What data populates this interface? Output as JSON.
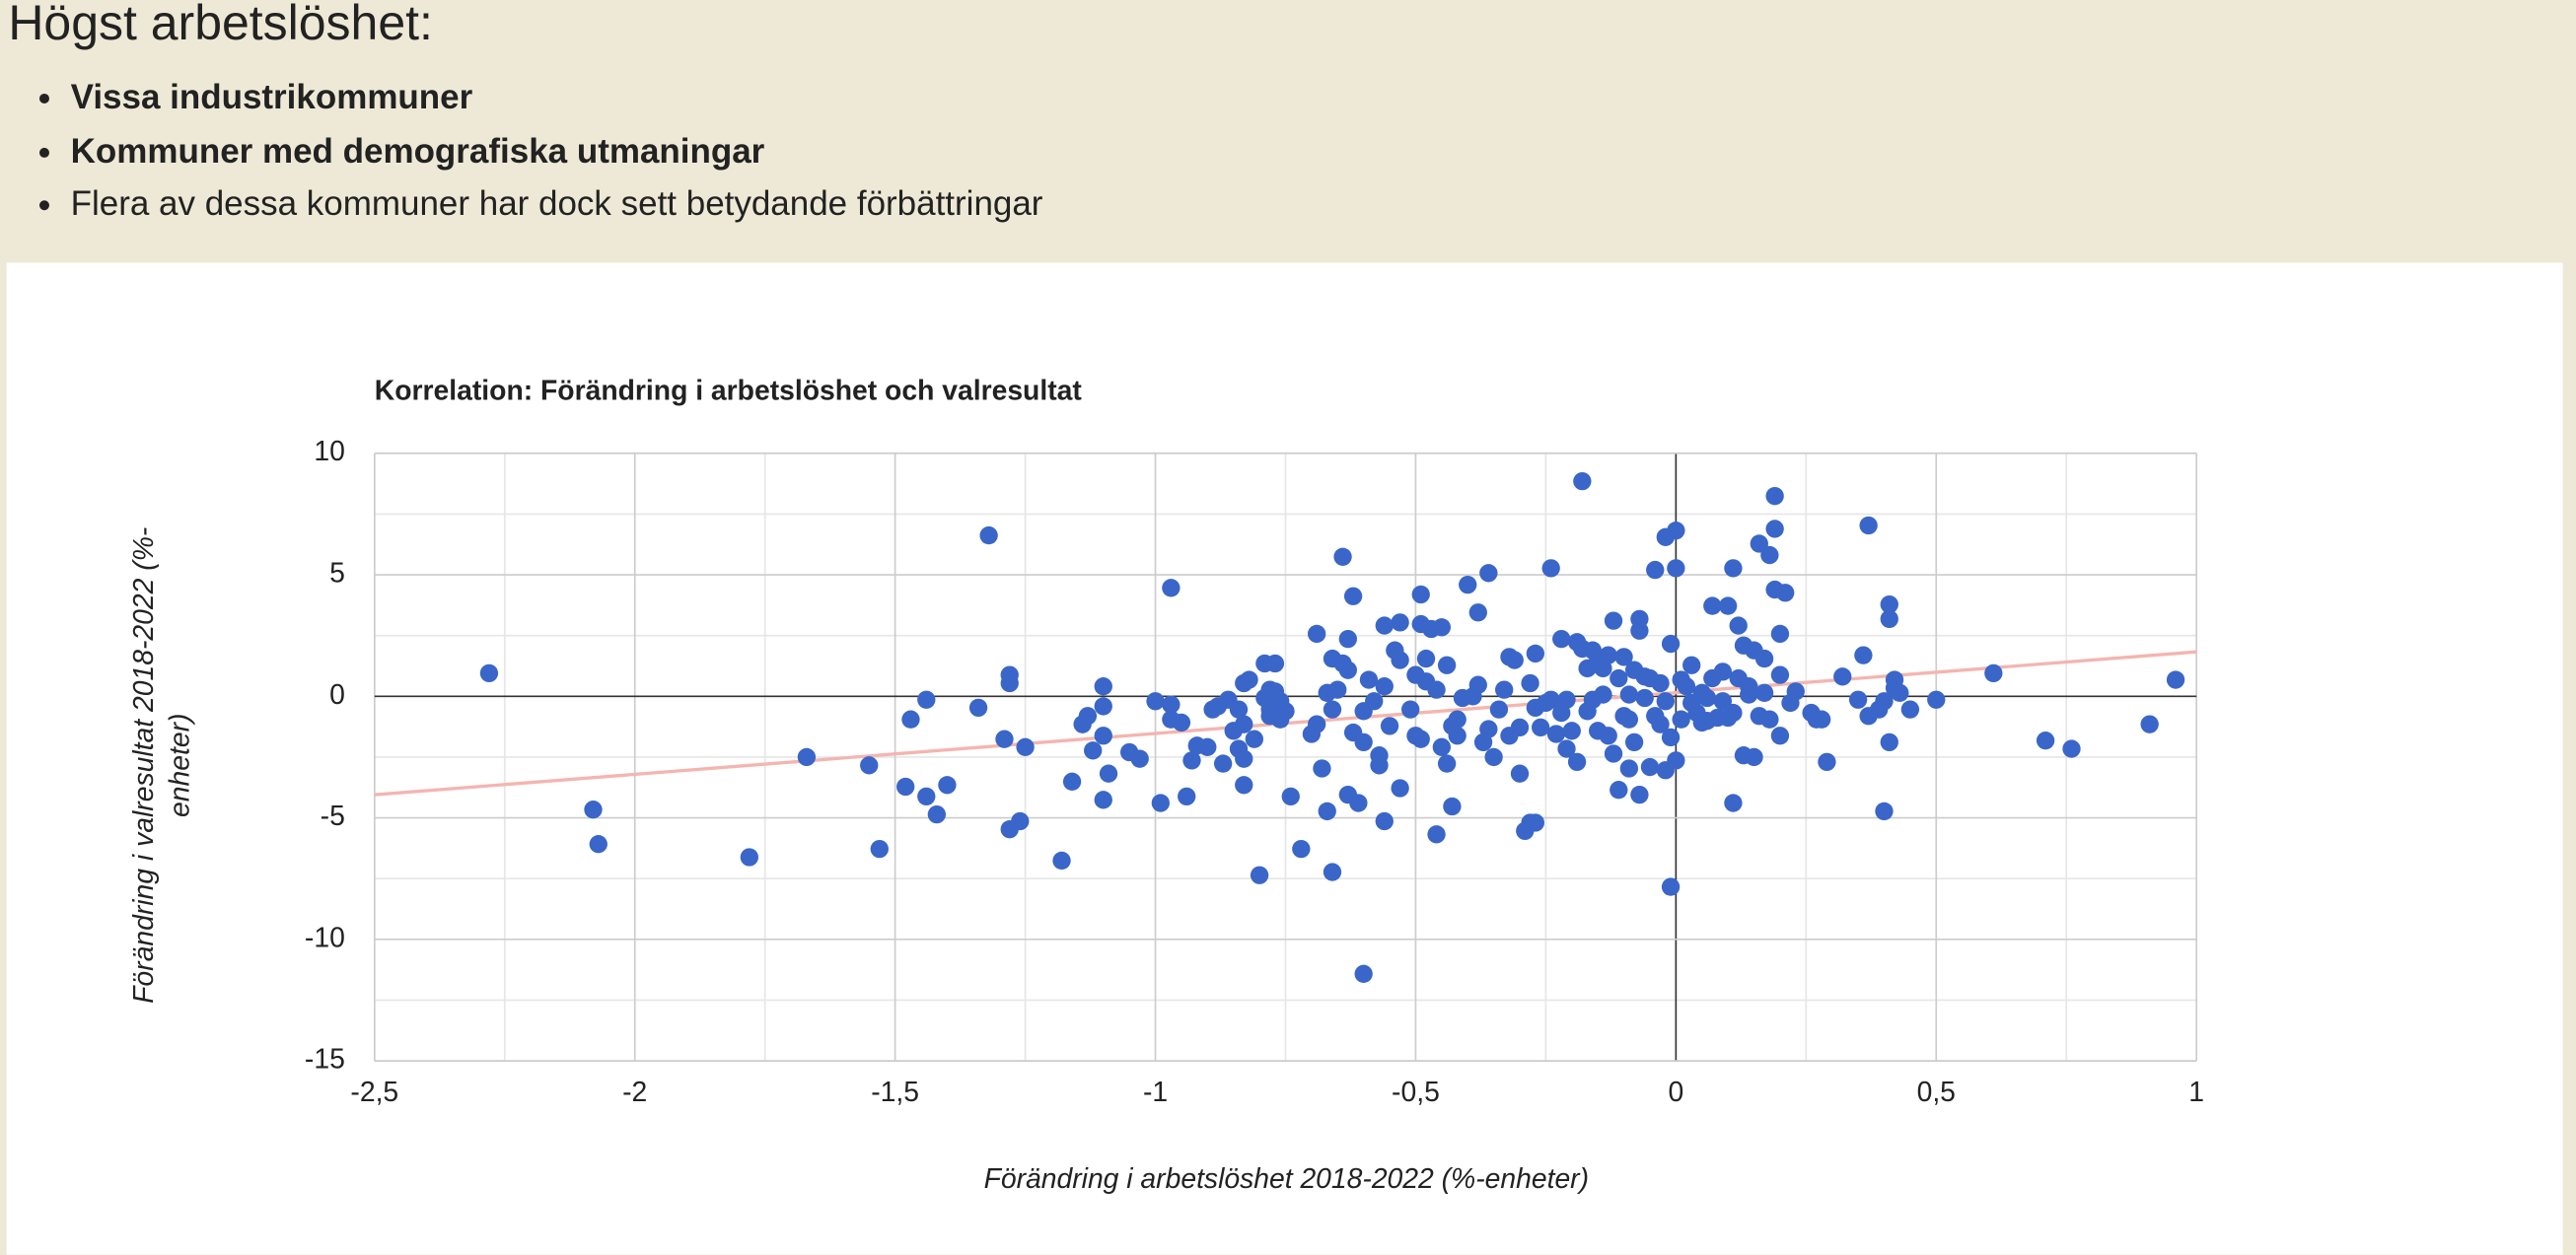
{
  "header": {
    "title": "Högst arbetslöshet:",
    "bullets": [
      {
        "text": "Vissa industrikommuner",
        "bold": true
      },
      {
        "text": "Kommuner med demografiska utmaningar",
        "bold": true
      },
      {
        "text": "Flera av dessa kommuner har dock sett betydande förbättringar",
        "bold": false
      }
    ]
  },
  "chart_data": {
    "type": "scatter",
    "title": "Korrelation: Förändring i arbetslöshet och valresultat",
    "xlabel": "Förändring i arbetslöshet 2018-2022 (%-enheter)",
    "ylabel": "Förändring i valresultat 2018-2022 (%-enheter)",
    "color": "#3a66c9",
    "xlim": [
      -2.5,
      1
    ],
    "ylim": [
      -15,
      10
    ],
    "xticks": [
      {
        "value": -2.5,
        "label": "-2,5"
      },
      -2,
      {
        "value": -1.5,
        "label": "-1,5"
      },
      -1,
      {
        "value": -0.5,
        "label": "-0,5"
      },
      0,
      {
        "value": 0.5,
        "label": "0,5"
      },
      1
    ],
    "yticks": [
      -15,
      -10,
      -5,
      0,
      5,
      10
    ],
    "grid": true,
    "minor_grid": true,
    "trendline": {
      "slope": 1.68,
      "intercept": 0.15,
      "color": "#f4b5b0"
    },
    "x": [
      -2.28,
      -2.08,
      -2.07,
      -1.78,
      -1.67,
      -1.55,
      -1.53,
      -1.48,
      -1.47,
      -1.44,
      -1.44,
      -1.42,
      -1.4,
      -1.34,
      -1.32,
      -1.29,
      -1.28,
      -1.28,
      -1.28,
      -1.26,
      -1.25,
      -1.18,
      -1.16,
      -1.14,
      -1.13,
      -1.12,
      -1.1,
      -1.1,
      -1.1,
      -1.1,
      -1.09,
      -1.05,
      -1.03,
      -1.0,
      -0.99,
      -0.97,
      -0.97,
      -0.97,
      -0.95,
      -0.94,
      -0.93,
      -0.92,
      -0.9,
      -0.89,
      -0.88,
      -0.87,
      -0.86,
      -0.85,
      -0.84,
      -0.84,
      -0.83,
      -0.83,
      -0.83,
      -0.83,
      -0.82,
      -0.81,
      -0.8,
      -0.79,
      -0.79,
      -0.78,
      -0.78,
      -0.78,
      -0.77,
      -0.77,
      -0.76,
      -0.76,
      -0.75,
      -0.74,
      -0.72,
      -0.7,
      -0.69,
      -0.69,
      -0.68,
      -0.67,
      -0.67,
      -0.66,
      -0.66,
      -0.66,
      -0.65,
      -0.64,
      -0.64,
      -0.63,
      -0.63,
      -0.63,
      -0.62,
      -0.62,
      -0.61,
      -0.6,
      -0.6,
      -0.6,
      -0.59,
      -0.58,
      -0.57,
      -0.57,
      -0.56,
      -0.56,
      -0.56,
      -0.55,
      -0.54,
      -0.53,
      -0.53,
      -0.53,
      -0.51,
      -0.5,
      -0.5,
      -0.49,
      -0.49,
      -0.49,
      -0.48,
      -0.48,
      -0.47,
      -0.46,
      -0.46,
      -0.45,
      -0.45,
      -0.44,
      -0.44,
      -0.43,
      -0.43,
      -0.42,
      -0.42,
      -0.41,
      -0.4,
      -0.39,
      -0.38,
      -0.38,
      -0.37,
      -0.36,
      -0.36,
      -0.35,
      -0.34,
      -0.33,
      -0.32,
      -0.32,
      -0.31,
      -0.3,
      -0.3,
      -0.29,
      -0.28,
      -0.28,
      -0.27,
      -0.27,
      -0.27,
      -0.26,
      -0.25,
      -0.24,
      -0.24,
      -0.23,
      -0.22,
      -0.22,
      -0.21,
      -0.21,
      -0.2,
      -0.19,
      -0.19,
      -0.18,
      -0.18,
      -0.17,
      -0.17,
      -0.16,
      -0.16,
      -0.15,
      -0.15,
      -0.14,
      -0.14,
      -0.13,
      -0.13,
      -0.12,
      -0.12,
      -0.11,
      -0.11,
      -0.1,
      -0.1,
      -0.09,
      -0.09,
      -0.09,
      -0.08,
      -0.08,
      -0.07,
      -0.07,
      -0.07,
      -0.06,
      -0.06,
      -0.05,
      -0.05,
      -0.04,
      -0.04,
      -0.03,
      -0.03,
      -0.02,
      -0.02,
      -0.02,
      -0.01,
      -0.01,
      -0.01,
      0.0,
      0.0,
      0.0,
      0.01,
      0.01,
      0.02,
      0.03,
      0.03,
      0.04,
      0.05,
      0.05,
      0.06,
      0.06,
      0.07,
      0.07,
      0.08,
      0.09,
      0.09,
      0.1,
      0.1,
      0.11,
      0.11,
      0.11,
      0.12,
      0.12,
      0.13,
      0.13,
      0.14,
      0.14,
      0.15,
      0.15,
      0.16,
      0.16,
      0.17,
      0.17,
      0.18,
      0.18,
      0.19,
      0.19,
      0.19,
      0.2,
      0.2,
      0.2,
      0.21,
      0.22,
      0.23,
      0.26,
      0.27,
      0.28,
      0.29,
      0.32,
      0.35,
      0.36,
      0.37,
      0.37,
      0.39,
      0.4,
      0.4,
      0.41,
      0.41,
      0.41,
      0.42,
      0.42,
      0.43,
      0.45,
      0.5,
      0.61,
      0.71,
      0.76,
      0.91,
      0.96
    ],
    "y": [
      0.95,
      -4.66,
      -6.08,
      -6.62,
      -2.5,
      -2.84,
      -6.28,
      -3.72,
      -0.95,
      -0.14,
      -4.12,
      -4.86,
      -3.65,
      -0.47,
      6.62,
      -1.76,
      0.88,
      0.54,
      -5.47,
      -5.14,
      -2.09,
      -6.76,
      -3.51,
      -1.15,
      -0.81,
      -2.23,
      0.41,
      -0.41,
      -1.62,
      -4.26,
      -3.18,
      -2.3,
      -2.57,
      -0.2,
      -4.39,
      -0.34,
      4.46,
      -0.95,
      -1.08,
      -4.12,
      -2.64,
      -2.03,
      -2.09,
      -0.54,
      -0.41,
      -2.77,
      -0.14,
      -1.42,
      -0.54,
      -2.16,
      -1.15,
      0.54,
      -2.57,
      -3.65,
      0.68,
      -1.76,
      -7.36,
      1.35,
      -0.07,
      -0.54,
      0.27,
      -0.81,
      1.35,
      0.2,
      -0.95,
      -0.2,
      -0.61,
      -4.12,
      -6.28,
      -1.55,
      2.57,
      -1.15,
      -2.97,
      -4.73,
      0.14,
      -7.23,
      1.55,
      -0.54,
      0.27,
      5.74,
      1.35,
      2.36,
      -4.05,
      1.08,
      -1.49,
      4.12,
      -4.39,
      -0.61,
      -11.42,
      -1.89,
      0.68,
      -0.2,
      -2.84,
      -2.43,
      2.91,
      0.41,
      -5.14,
      -1.22,
      1.89,
      3.04,
      1.49,
      -3.78,
      -0.54,
      0.88,
      -1.62,
      4.19,
      2.97,
      -1.76,
      1.55,
      0.61,
      2.77,
      0.27,
      -5.68,
      2.84,
      -2.09,
      -2.77,
      1.28,
      -4.53,
      -1.22,
      -0.95,
      -1.62,
      -0.07,
      4.59,
      0,
      3.45,
      0.47,
      -1.89,
      5.07,
      -1.35,
      -2.5,
      -0.54,
      0.27,
      1.62,
      -1.62,
      1.49,
      -1.28,
      -3.18,
      -5.54,
      -5.2,
      0.54,
      1.76,
      -0.47,
      -5.2,
      -1.28,
      -0.27,
      5.27,
      -0.14,
      -1.55,
      -0.68,
      2.36,
      -2.16,
      -0.14,
      -1.42,
      2.23,
      -2.7,
      8.85,
      1.96,
      -0.61,
      1.15,
      -0.14,
      1.89,
      -1.42,
      1.49,
      1.15,
      0.07,
      -1.62,
      1.69,
      3.11,
      -2.36,
      0.74,
      -3.85,
      -0.81,
      1.62,
      -2.97,
      0.07,
      -0.95,
      -1.89,
      1.08,
      2.7,
      -4.05,
      3.18,
      0.81,
      -0.07,
      -2.91,
      0.74,
      5.2,
      -0.81,
      0.54,
      -1.15,
      6.55,
      -3.04,
      -0.2,
      -7.84,
      2.16,
      -1.69,
      6.82,
      5.27,
      -2.64,
      0.68,
      -0.95,
      0.41,
      -0.27,
      1.28,
      -0.68,
      0.14,
      -1.08,
      -0.07,
      -1.01,
      3.72,
      0.74,
      -0.88,
      1.01,
      -0.2,
      3.72,
      -0.88,
      5.27,
      -4.39,
      -0.68,
      2.91,
      0.74,
      2.09,
      -2.43,
      0.07,
      0.41,
      -2.5,
      1.89,
      -0.81,
      6.28,
      1.55,
      0.14,
      5.81,
      -0.95,
      8.24,
      6.89,
      4.39,
      0.88,
      2.57,
      -1.62,
      4.26,
      -0.27,
      0.2,
      -0.68,
      -0.95,
      -0.95,
      -2.7,
      0.81,
      -0.14,
      1.69,
      7.03,
      -0.81,
      -0.54,
      -4.73,
      -0.2,
      3.78,
      3.18,
      -1.89,
      0.34,
      0.68,
      0.14,
      -0.54,
      -0.14,
      0.95,
      -1.82,
      -2.16,
      -1.15,
      0.68
    ]
  }
}
